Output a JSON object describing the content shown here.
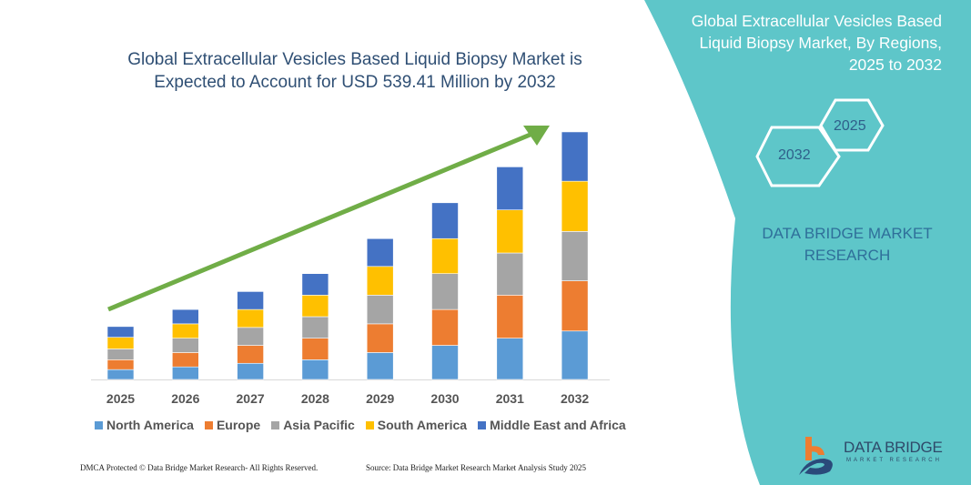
{
  "chart_data": {
    "type": "bar",
    "stacked": true,
    "title": "Global Extracellular Vesicles Based Liquid Biopsy Market is Expected to Account for USD 539.41 Million by 2032",
    "categories": [
      "2025",
      "2026",
      "2027",
      "2028",
      "2029",
      "2030",
      "2031",
      "2032"
    ],
    "series": [
      {
        "name": "North America",
        "color": "#5b9bd5",
        "values": [
          11,
          14,
          18,
          22,
          30,
          38,
          46,
          54
        ]
      },
      {
        "name": "Europe",
        "color": "#ed7d31",
        "values": [
          11,
          16,
          20,
          24,
          32,
          40,
          48,
          56
        ]
      },
      {
        "name": "Asia Pacific",
        "color": "#a5a5a5",
        "values": [
          12,
          16,
          20,
          24,
          32,
          40,
          47,
          55
        ]
      },
      {
        "name": "South America",
        "color": "#ffc000",
        "values": [
          13,
          16,
          20,
          24,
          32,
          39,
          48,
          56
        ]
      },
      {
        "name": "Middle East and Africa",
        "color": "#4472c4",
        "values": [
          12,
          16,
          20,
          24,
          31,
          40,
          48,
          55
        ]
      }
    ],
    "ylim": [
      0,
      280
    ],
    "grid": false,
    "legend_position": "bottom",
    "trend_arrow_color": "#70ad47"
  },
  "side_panel": {
    "title": "Global Extracellular Vesicles Based Liquid Biopsy Market, By Regions, 2025 to 2032",
    "hex_left": "2032",
    "hex_right": "2025",
    "brand": "DATA BRIDGE MARKET RESEARCH",
    "color": "#5ec6c9"
  },
  "footer": {
    "left": "DMCA Protected © Data Bridge Market Research- All Rights Reserved.",
    "right": "Source: Data Bridge Market Research Market Analysis Study 2025"
  },
  "logo": {
    "name": "DATA BRIDGE",
    "sub": "MARKET RESEARCH"
  }
}
